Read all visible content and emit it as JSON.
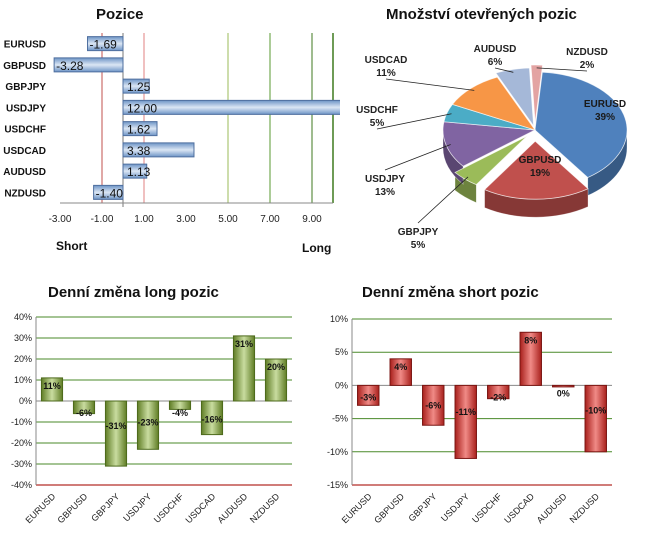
{
  "charts": [
    {
      "type": "bar",
      "orientation": "horizontal",
      "title": "Pozice",
      "categories": [
        "EURUSD",
        "GBPUSD",
        "GBPJPY",
        "USDJPY",
        "USDCHF",
        "USDCAD",
        "AUDUSD",
        "NZDUSD"
      ],
      "values": [
        -1.69,
        -3.28,
        1.25,
        12.0,
        1.62,
        3.38,
        1.13,
        -1.4
      ],
      "value_labels": [
        "-1.69",
        "-3.28",
        "1.25",
        "12.00",
        "1.62",
        "3.38",
        "1.13",
        "-1.40"
      ],
      "xlim": [
        -3,
        10
      ],
      "xticks": [
        -3,
        -1,
        1,
        3,
        5,
        7,
        9
      ],
      "xtick_labels": [
        "-3.00",
        "-1.00",
        "1.00",
        "3.00",
        "5.00",
        "7.00",
        "9.00"
      ],
      "reference_lines": [
        {
          "value": -1,
          "color": "#c0504d"
        },
        {
          "value": 1,
          "color": "#e08080"
        },
        {
          "value": 5,
          "color": "#9bbb59"
        },
        {
          "value": 7,
          "color": "#5a9a30"
        },
        {
          "value": 9,
          "color": "#3f7a1f"
        }
      ],
      "annotations": {
        "left": "Short",
        "right": "Long"
      },
      "bar_color": "#4f81bd"
    },
    {
      "type": "pie",
      "title": "Množství otevřených pozic",
      "slices": [
        {
          "name": "EURUSD",
          "value": 39,
          "label": "39%",
          "color": "#4f81bd"
        },
        {
          "name": "GBPUSD",
          "value": 19,
          "label": "19%",
          "color": "#c0504d"
        },
        {
          "name": "GBPJPY",
          "value": 5,
          "label": "5%",
          "color": "#9bbb59"
        },
        {
          "name": "USDJPY",
          "value": 13,
          "label": "13%",
          "color": "#8064a2"
        },
        {
          "name": "USDCHF",
          "value": 5,
          "label": "5%",
          "color": "#4bacc6"
        },
        {
          "name": "USDCAD",
          "value": 11,
          "label": "11%",
          "color": "#f79646"
        },
        {
          "name": "AUDUSD",
          "value": 6,
          "label": "6%",
          "color": "#a5b8d8"
        },
        {
          "name": "NZDUSD",
          "value": 2,
          "label": "2%",
          "color": "#e3a3a2"
        }
      ]
    },
    {
      "type": "bar",
      "title": "Denní změna long pozic",
      "categories": [
        "EURUSD",
        "GBPUSD",
        "GBPJPY",
        "USDJPY",
        "USDCHF",
        "USDCAD",
        "AUDUSD",
        "NZDUSD"
      ],
      "values": [
        11,
        -6,
        -31,
        -23,
        -4,
        -16,
        31,
        20
      ],
      "value_labels": [
        "11%",
        "-6%",
        "-31%",
        "-23%",
        "-4%",
        "-16%",
        "31%",
        "20%"
      ],
      "ylim": [
        -40,
        40
      ],
      "yticks": [
        -40,
        -30,
        -20,
        -10,
        0,
        10,
        20,
        30,
        40
      ],
      "ytick_labels": [
        "-40%",
        "-30%",
        "-20%",
        "-10%",
        "0%",
        "10%",
        "20%",
        "30%",
        "40%"
      ],
      "bar_color": "#6b8e23",
      "grid_color": "#4a8a2a",
      "bottom_line_color": "#c0504d"
    },
    {
      "type": "bar",
      "title": "Denní změna short pozic",
      "categories": [
        "EURUSD",
        "GBPUSD",
        "GBPJPY",
        "USDJPY",
        "USDCHF",
        "USDCAD",
        "AUDUSD",
        "NZDUSD"
      ],
      "values": [
        -3,
        4,
        -6,
        -11,
        -2,
        8,
        0,
        -10
      ],
      "value_labels": [
        "-3%",
        "4%",
        "-6%",
        "-11%",
        "-2%",
        "8%",
        "0%",
        "-10%"
      ],
      "ylim": [
        -15,
        10
      ],
      "yticks": [
        -15,
        -10,
        -5,
        0,
        5,
        10
      ],
      "ytick_labels": [
        "-15%",
        "-10%",
        "-5%",
        "0%",
        "5%",
        "10%"
      ],
      "bar_color": "#c0302d",
      "grid_color": "#4a8a2a",
      "bottom_line_color": "#c0504d"
    }
  ]
}
